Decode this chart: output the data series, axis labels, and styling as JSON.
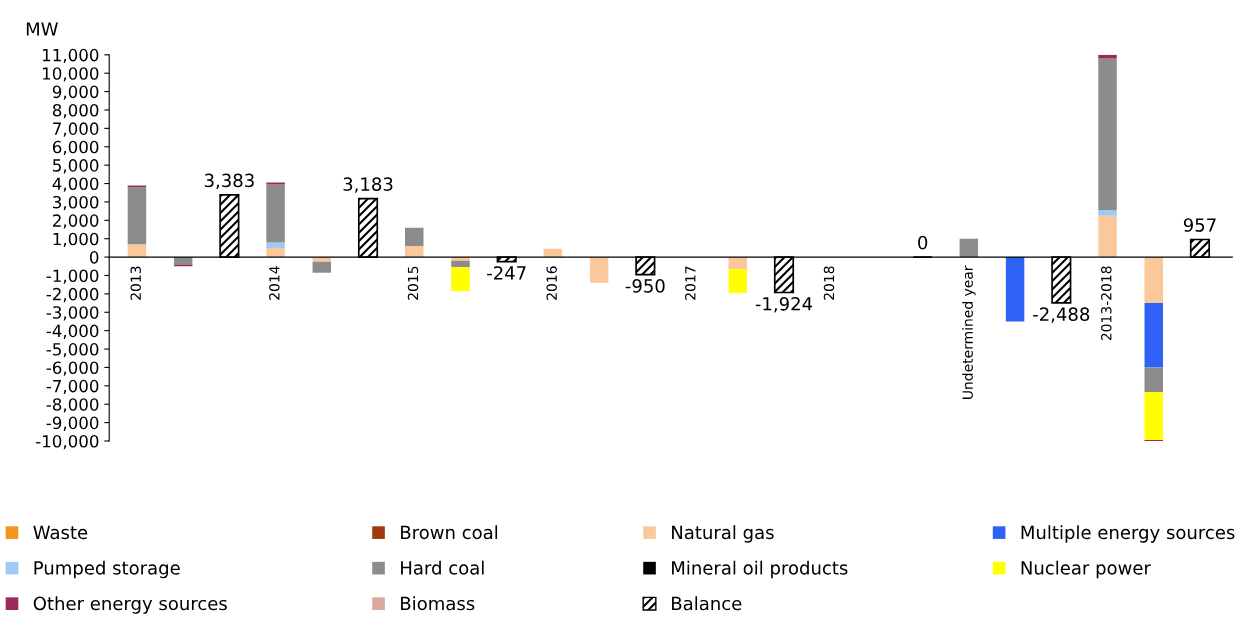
{
  "chart_data": {
    "type": "bar",
    "stacked": true,
    "ylabel": "MW",
    "categories": [
      "2013",
      null,
      null,
      "2014",
      null,
      null,
      "2015",
      null,
      null,
      "2016",
      null,
      null,
      "2017",
      null,
      null,
      "2018",
      null,
      null,
      "Undetermined year",
      null,
      null,
      "2013-2018",
      null,
      null
    ],
    "series": [
      {
        "name": "Waste",
        "color": "#f7941d",
        "values": [
          null,
          null,
          null,
          null,
          null,
          null,
          null,
          null,
          null,
          null,
          null,
          null,
          null,
          null,
          null,
          null,
          null,
          null,
          null,
          null,
          null,
          null,
          null,
          null
        ]
      },
      {
        "name": "Brown coal",
        "color": "#9e3a0f",
        "values": [
          null,
          null,
          null,
          null,
          null,
          null,
          null,
          null,
          null,
          null,
          null,
          null,
          null,
          null,
          null,
          null,
          null,
          null,
          null,
          null,
          null,
          null,
          null,
          null
        ]
      },
      {
        "name": "Natural gas",
        "color": "#fac89a",
        "values": [
          700,
          null,
          null,
          500,
          -250,
          null,
          600,
          -200,
          null,
          450,
          -1400,
          null,
          null,
          -650,
          null,
          null,
          null,
          null,
          null,
          null,
          null,
          2250,
          -2500,
          null
        ]
      },
      {
        "name": "Multiple energy sources",
        "color": "#2e62f5",
        "values": [
          null,
          null,
          null,
          null,
          null,
          null,
          null,
          null,
          null,
          null,
          null,
          null,
          null,
          null,
          null,
          null,
          null,
          null,
          null,
          -3500,
          null,
          null,
          -3500,
          null
        ]
      },
      {
        "name": "Pumped storage",
        "color": "#9dcbf5",
        "values": [
          null,
          null,
          null,
          300,
          null,
          null,
          null,
          null,
          null,
          null,
          null,
          null,
          null,
          null,
          null,
          null,
          null,
          null,
          null,
          null,
          null,
          300,
          null,
          null
        ]
      },
      {
        "name": "Hard coal",
        "color": "#8c8c8c",
        "values": [
          3100,
          -400,
          null,
          3150,
          -600,
          null,
          1000,
          -350,
          null,
          null,
          null,
          null,
          null,
          null,
          null,
          null,
          null,
          null,
          1000,
          null,
          null,
          8250,
          -1350,
          null
        ]
      },
      {
        "name": "Mineral oil products",
        "color": "#000000",
        "values": [
          null,
          null,
          null,
          null,
          null,
          null,
          null,
          null,
          null,
          null,
          null,
          null,
          null,
          null,
          null,
          null,
          null,
          null,
          null,
          null,
          null,
          null,
          null,
          null
        ]
      },
      {
        "name": "Nuclear power",
        "color": "#ffff00",
        "values": [
          null,
          null,
          null,
          null,
          null,
          null,
          null,
          -1300,
          null,
          null,
          null,
          null,
          null,
          -1300,
          null,
          null,
          null,
          null,
          null,
          null,
          null,
          null,
          -2600,
          null
        ]
      },
      {
        "name": "Other energy sources",
        "color": "#9b2a5a",
        "values": [
          100,
          -100,
          null,
          100,
          null,
          null,
          null,
          null,
          null,
          null,
          null,
          null,
          null,
          null,
          null,
          null,
          null,
          null,
          null,
          null,
          null,
          200,
          -100,
          null
        ]
      },
      {
        "name": "Biomass",
        "color": "#dba8a0",
        "values": [
          null,
          null,
          null,
          null,
          null,
          null,
          null,
          null,
          null,
          null,
          null,
          null,
          null,
          null,
          null,
          null,
          null,
          null,
          null,
          null,
          null,
          null,
          null,
          null
        ]
      },
      {
        "name": "Balance",
        "color": "#000000",
        "values": [
          null,
          null,
          3383,
          null,
          null,
          3183,
          null,
          null,
          -247,
          null,
          null,
          -950,
          null,
          null,
          -1924,
          null,
          null,
          0,
          null,
          null,
          -2488,
          null,
          null,
          957
        ],
        "value_labels": [
          null,
          null,
          "3,383",
          null,
          null,
          "3,183",
          null,
          null,
          "-247",
          null,
          null,
          "-950",
          null,
          null,
          "-1,924",
          null,
          null,
          "0",
          null,
          null,
          "-2,488",
          null,
          null,
          "957"
        ]
      }
    ],
    "ylim": [
      -10000,
      11000
    ],
    "yticks": [
      {
        "value": -10000,
        "label": "-10,000"
      },
      {
        "value": -9000,
        "label": "-9,000"
      },
      {
        "value": -8000,
        "label": "-8,000"
      },
      {
        "value": -7000,
        "label": "-7,000"
      },
      {
        "value": -6000,
        "label": "-6,000"
      },
      {
        "value": -5000,
        "label": "-5,000"
      },
      {
        "value": -4000,
        "label": "-4,000"
      },
      {
        "value": -3000,
        "label": "-3,000"
      },
      {
        "value": -2000,
        "label": "-2,000"
      },
      {
        "value": -1000,
        "label": "-1,000"
      },
      0,
      {
        "value": 1000,
        "label": "1,000"
      },
      {
        "value": 2000,
        "label": "2,000"
      },
      {
        "value": 3000,
        "label": "3,000"
      },
      {
        "value": 4000,
        "label": "4,000"
      },
      {
        "value": 5000,
        "label": "5,000"
      },
      {
        "value": 6000,
        "label": "6,000"
      },
      {
        "value": 7000,
        "label": "7,000"
      },
      {
        "value": 8000,
        "label": "8,000"
      },
      {
        "value": 9000,
        "label": "9,000"
      },
      {
        "value": 10000,
        "label": "10,000"
      },
      {
        "value": 11000,
        "label": "11,000"
      }
    ],
    "grid": false,
    "legend": "bottom"
  }
}
